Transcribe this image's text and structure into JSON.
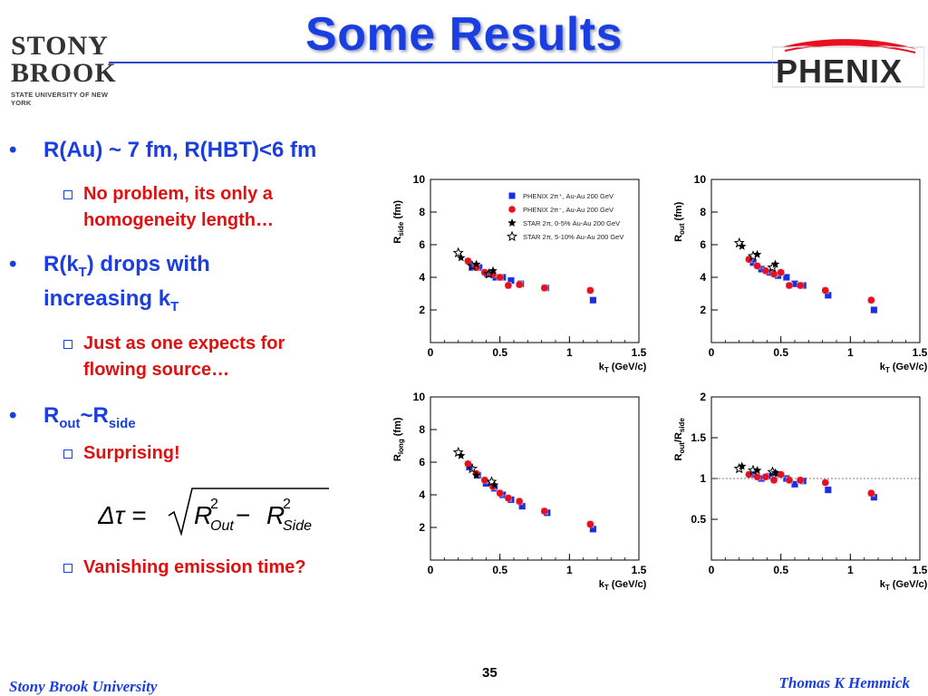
{
  "title": "Some Results",
  "logos": {
    "left": {
      "line1": "STONY",
      "line2": "BROOK",
      "line3": "STATE UNIVERSITY OF NEW YORK"
    },
    "right": {
      "word": "PHENIX"
    }
  },
  "bullets": [
    {
      "text": "R(Au) ~ 7 fm, R(HBT)<6 fm"
    },
    {
      "sub": "No problem, its only a",
      "sub2": "homogeneity length…"
    },
    {
      "pre": "R(k",
      "sub": "T",
      "post": ") drops with",
      "line2_pre": "increasing k",
      "line2_sub": "T"
    },
    {
      "sub": "Just as one expects for",
      "sub2": "flowing source…"
    },
    {
      "pre": "R",
      "sub_a": "out",
      "mid": "~R",
      "sub_b": "side"
    },
    {
      "sub": "Surprising!"
    },
    {
      "sub": "Vanishing emission time?"
    }
  ],
  "formula": {
    "lhs": "Δτ = ",
    "r": "R",
    "sq": "2",
    "out": "Out",
    "minus": " − ",
    "side": "Side"
  },
  "footer": {
    "left": "Stony Brook University",
    "right": "Thomas K Hemmick",
    "page": "35"
  },
  "colors": {
    "title": "#1a3ee0",
    "emphasis": "#e01010",
    "phenix_blue": "#1a2ee8",
    "phenix_red": "#e81020"
  },
  "legend": [
    {
      "marker": "blue-square",
      "label": "PHENIX 2π⁺, Au-Au 200 GeV"
    },
    {
      "marker": "red-circle",
      "label": "PHENIX 2π⁻, Au-Au 200 GeV"
    },
    {
      "marker": "filled-star",
      "label": "STAR 2π, 0-5% Au-Au 200 GeV"
    },
    {
      "marker": "open-star",
      "label": "STAR 2π, 5-10% Au-Au 200 GeV"
    }
  ],
  "chart_data": [
    {
      "type": "scatter",
      "id": "rside",
      "ylabel_main": "R",
      "ylabel_sub": "side",
      "ylabel_unit": " (fm)",
      "xlabel_main": "k",
      "xlabel_sub": "T",
      "xlabel_unit": " (GeV/c)",
      "xlim": [
        0,
        1.5
      ],
      "ylim": [
        0,
        10
      ],
      "xticks": [
        "0",
        "0.5",
        "1",
        "1.5"
      ],
      "yticks": [
        "2",
        "4",
        "6",
        "8",
        "10"
      ],
      "legend": "top-right",
      "series": [
        {
          "name": "PHENIX 2π⁺, Au-Au 200 GeV",
          "marker": "blue-square",
          "x": [
            0.3,
            0.35,
            0.41,
            0.47,
            0.52,
            0.58,
            0.65,
            0.83,
            1.17
          ],
          "y": [
            4.6,
            4.6,
            4.2,
            4.0,
            4.0,
            3.8,
            3.6,
            3.35,
            2.6
          ]
        },
        {
          "name": "PHENIX 2π⁻, Au-Au 200 GeV",
          "marker": "red-circle",
          "x": [
            0.27,
            0.33,
            0.39,
            0.45,
            0.5,
            0.56,
            0.64,
            0.82,
            1.15
          ],
          "y": [
            5.0,
            4.6,
            4.3,
            4.2,
            4.0,
            3.5,
            3.55,
            3.35,
            3.2
          ]
        },
        {
          "name": "STAR 2π, 0-5% Au-Au 200 GeV",
          "marker": "filled-star",
          "x": [
            0.22,
            0.33,
            0.45
          ],
          "y": [
            5.2,
            4.8,
            4.4
          ]
        },
        {
          "name": "STAR 2π, 5-10% Au-Au 200 GeV",
          "marker": "open-star",
          "x": [
            0.2,
            0.3,
            0.42
          ],
          "y": [
            5.5,
            4.7,
            4.2
          ]
        }
      ]
    },
    {
      "type": "scatter",
      "id": "rout",
      "ylabel_main": "R",
      "ylabel_sub": "out",
      "ylabel_unit": " (fm)",
      "xlabel_main": "k",
      "xlabel_sub": "T",
      "xlabel_unit": " (GeV/c)",
      "xlim": [
        0,
        1.5
      ],
      "ylim": [
        0,
        10
      ],
      "xticks": [
        "0",
        "0.5",
        "1",
        "1.5"
      ],
      "yticks": [
        "2",
        "4",
        "6",
        "8",
        "10"
      ],
      "series": [
        {
          "name": "PHENIX 2π⁺, Au-Au 200 GeV",
          "marker": "blue-square",
          "x": [
            0.3,
            0.36,
            0.42,
            0.48,
            0.54,
            0.6,
            0.66,
            0.84,
            1.17
          ],
          "y": [
            4.9,
            4.5,
            4.3,
            4.1,
            4.0,
            3.6,
            3.5,
            2.9,
            2.0
          ]
        },
        {
          "name": "PHENIX 2π⁻, Au-Au 200 GeV",
          "marker": "red-circle",
          "x": [
            0.27,
            0.33,
            0.39,
            0.45,
            0.5,
            0.56,
            0.64,
            0.82,
            1.15
          ],
          "y": [
            5.1,
            4.7,
            4.4,
            4.2,
            4.3,
            3.5,
            3.5,
            3.2,
            2.6
          ]
        },
        {
          "name": "STAR 2π, 0-5% Au-Au 200 GeV",
          "marker": "filled-star",
          "x": [
            0.22,
            0.33,
            0.46
          ],
          "y": [
            5.9,
            5.4,
            4.8
          ]
        },
        {
          "name": "STAR 2π, 5-10% Au-Au 200 GeV",
          "marker": "open-star",
          "x": [
            0.2,
            0.3,
            0.44
          ],
          "y": [
            6.1,
            5.3,
            4.6
          ]
        }
      ]
    },
    {
      "type": "scatter",
      "id": "rlong",
      "ylabel_main": "R",
      "ylabel_sub": "long",
      "ylabel_unit": " (fm)",
      "xlabel_main": "k",
      "xlabel_sub": "T",
      "xlabel_unit": " (GeV/c)",
      "xlim": [
        0,
        1.5
      ],
      "ylim": [
        0,
        10
      ],
      "xticks": [
        "0",
        "0.5",
        "1",
        "1.5"
      ],
      "yticks": [
        "2",
        "4",
        "6",
        "8",
        "10"
      ],
      "series": [
        {
          "name": "PHENIX 2π⁺, Au-Au 200 GeV",
          "marker": "blue-square",
          "x": [
            0.28,
            0.34,
            0.4,
            0.46,
            0.52,
            0.58,
            0.66,
            0.84,
            1.17
          ],
          "y": [
            5.7,
            5.2,
            4.7,
            4.4,
            4.0,
            3.7,
            3.3,
            2.9,
            1.9
          ]
        },
        {
          "name": "PHENIX 2π⁻, Au-Au 200 GeV",
          "marker": "red-circle",
          "x": [
            0.27,
            0.33,
            0.39,
            0.45,
            0.5,
            0.56,
            0.64,
            0.82,
            1.15
          ],
          "y": [
            5.9,
            5.3,
            4.9,
            4.5,
            4.1,
            3.8,
            3.6,
            3.0,
            2.2
          ]
        },
        {
          "name": "STAR 2π, 0-5% Au-Au 200 GeV",
          "marker": "filled-star",
          "x": [
            0.22,
            0.33,
            0.46
          ],
          "y": [
            6.4,
            5.2,
            4.6
          ]
        },
        {
          "name": "STAR 2π, 5-10% Au-Au 200 GeV",
          "marker": "open-star",
          "x": [
            0.2,
            0.3,
            0.44
          ],
          "y": [
            6.6,
            5.6,
            4.8
          ]
        }
      ]
    },
    {
      "type": "scatter",
      "id": "ratio",
      "ylabel_main": "R",
      "ylabel_sub": "out",
      "ylabel_mid": "/R",
      "ylabel_sub2": "side",
      "ylabel_unit": "",
      "xlabel_main": "k",
      "xlabel_sub": "T",
      "xlabel_unit": " (GeV/c)",
      "xlim": [
        0,
        1.5
      ],
      "ylim": [
        0,
        2
      ],
      "xticks": [
        "0",
        "0.5",
        "1",
        "1.5"
      ],
      "yticks": [
        "0.5",
        "1",
        "1.5",
        "2"
      ],
      "reference_line": 1,
      "series": [
        {
          "name": "PHENIX 2π⁺, Au-Au 200 GeV",
          "marker": "blue-square",
          "x": [
            0.3,
            0.36,
            0.42,
            0.48,
            0.54,
            0.6,
            0.66,
            0.84,
            1.17
          ],
          "y": [
            1.05,
            1.0,
            1.03,
            1.05,
            1.0,
            0.93,
            0.97,
            0.86,
            0.77
          ]
        },
        {
          "name": "PHENIX 2π⁻, Au-Au 200 GeV",
          "marker": "red-circle",
          "x": [
            0.27,
            0.33,
            0.39,
            0.45,
            0.5,
            0.56,
            0.64,
            0.82,
            1.15
          ],
          "y": [
            1.05,
            1.02,
            1.02,
            0.98,
            1.05,
            0.98,
            0.98,
            0.95,
            0.82
          ]
        },
        {
          "name": "STAR 2π, 0-5% Au-Au 200 GeV",
          "marker": "filled-star",
          "x": [
            0.22,
            0.33,
            0.46
          ],
          "y": [
            1.15,
            1.1,
            1.07
          ]
        },
        {
          "name": "STAR 2π, 5-10% Au-Au 200 GeV",
          "marker": "open-star",
          "x": [
            0.2,
            0.3,
            0.44
          ],
          "y": [
            1.12,
            1.1,
            1.08
          ]
        }
      ]
    }
  ]
}
